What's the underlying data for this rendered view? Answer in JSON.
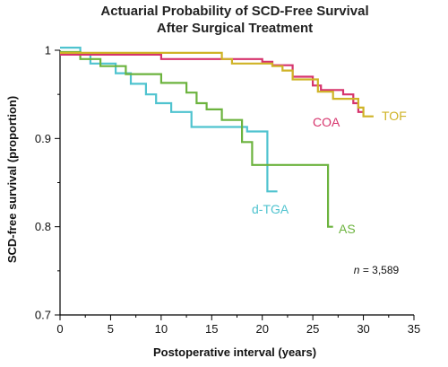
{
  "chart_data": {
    "type": "line",
    "title": "Actuarial Probability of SCD-Free Survival",
    "subtitle": "After Surgical Treatment",
    "xlabel": "Postoperative interval (years)",
    "ylabel": "SCD-free survival (proportion)",
    "xlim": [
      0,
      35
    ],
    "ylim": [
      0.7,
      1.0
    ],
    "x_ticks": [
      0,
      5,
      10,
      15,
      20,
      25,
      30,
      35
    ],
    "y_ticks": [
      0.7,
      0.8,
      0.9,
      1
    ],
    "y_tick_labels": [
      "0.7",
      "0.8",
      "0.9",
      "1"
    ],
    "grid": false,
    "annotation": {
      "prefix": "n",
      "text": " = 3,589"
    },
    "series": [
      {
        "name": "COA",
        "color": "#d6336c",
        "steps": [
          [
            0,
            0.995
          ],
          [
            10,
            0.99
          ],
          [
            20,
            0.987
          ],
          [
            21,
            0.983
          ],
          [
            23,
            0.97
          ],
          [
            25,
            0.96
          ],
          [
            25.8,
            0.955
          ],
          [
            28,
            0.95
          ],
          [
            29,
            0.94
          ],
          [
            29.5,
            0.93
          ],
          [
            30,
            0.93
          ]
        ]
      },
      {
        "name": "TOF",
        "color": "#cfb326",
        "steps": [
          [
            0,
            0.997
          ],
          [
            16,
            0.99
          ],
          [
            17,
            0.985
          ],
          [
            21,
            0.982
          ],
          [
            22,
            0.977
          ],
          [
            23,
            0.967
          ],
          [
            25.5,
            0.953
          ],
          [
            27,
            0.945
          ],
          [
            29.5,
            0.935
          ],
          [
            30,
            0.925
          ],
          [
            31,
            0.925
          ]
        ]
      },
      {
        "name": "d-TGA",
        "color": "#4fc3cf",
        "steps": [
          [
            0,
            1.003
          ],
          [
            2,
            0.995
          ],
          [
            3,
            0.985
          ],
          [
            5.5,
            0.974
          ],
          [
            7,
            0.962
          ],
          [
            8.5,
            0.95
          ],
          [
            9.5,
            0.94
          ],
          [
            11,
            0.93
          ],
          [
            13,
            0.913
          ],
          [
            18.5,
            0.908
          ],
          [
            20.5,
            0.84
          ],
          [
            21.5,
            0.84
          ]
        ]
      },
      {
        "name": "AS",
        "color": "#6cb33e",
        "steps": [
          [
            0,
            0.998
          ],
          [
            2,
            0.99
          ],
          [
            4,
            0.982
          ],
          [
            6.5,
            0.973
          ],
          [
            10,
            0.963
          ],
          [
            12.5,
            0.952
          ],
          [
            13.5,
            0.94
          ],
          [
            14.5,
            0.933
          ],
          [
            16,
            0.921
          ],
          [
            18,
            0.896
          ],
          [
            19,
            0.87
          ],
          [
            26.5,
            0.8
          ],
          [
            27,
            0.8
          ]
        ]
      }
    ]
  }
}
